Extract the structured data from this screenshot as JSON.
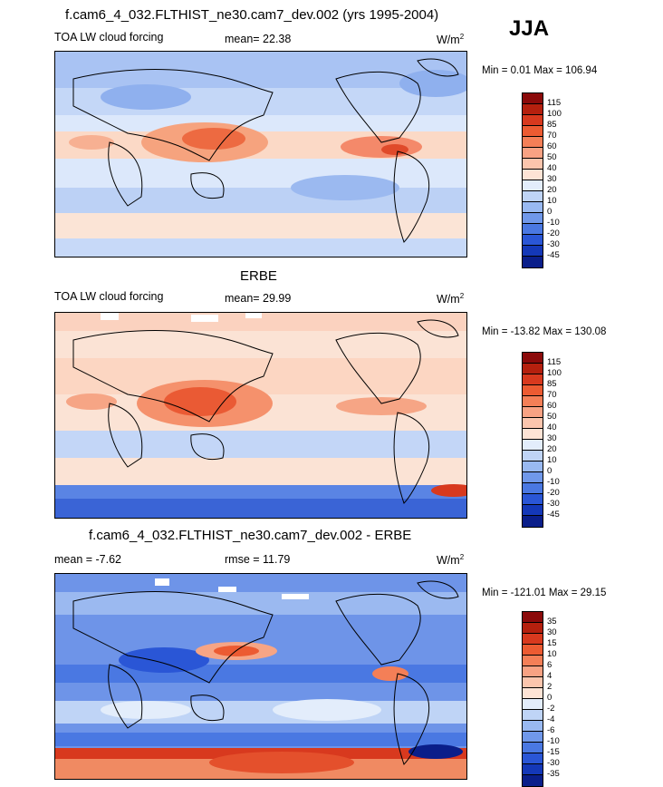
{
  "season": "JJA",
  "panels": [
    {
      "title": "f.cam6_4_032.FLTHIST_ne30.cam7_dev.002 (yrs 1995-2004)",
      "variable": "TOA LW cloud forcing",
      "stat1": "mean=  22.38",
      "stat2": "",
      "units": "W/m",
      "units_sup": "2",
      "minmax": "Min =   0.01 Max = 106.94",
      "colorbar": {
        "labels": [
          "115",
          "100",
          "85",
          "70",
          "60",
          "50",
          "40",
          "30",
          "20",
          "10",
          "0",
          "-10",
          "-20",
          "-30",
          "-45"
        ],
        "colors": [
          "#8b0a0a",
          "#b5200e",
          "#d8391e",
          "#ec5b32",
          "#f47f57",
          "#f8a283",
          "#fbc5ad",
          "#fde3d5",
          "#e3edfb",
          "#bfd4f6",
          "#99b9f1",
          "#7098ea",
          "#4a78e2",
          "#2a56d6",
          "#1438b8",
          "#0a1e8a"
        ]
      }
    },
    {
      "title": "ERBE",
      "variable": "TOA LW cloud forcing",
      "stat1": "mean=  29.99",
      "stat2": "",
      "units": "W/m",
      "units_sup": "2",
      "minmax": "Min = -13.82 Max = 130.08",
      "colorbar": {
        "labels": [
          "115",
          "100",
          "85",
          "70",
          "60",
          "50",
          "40",
          "30",
          "20",
          "10",
          "0",
          "-10",
          "-20",
          "-30",
          "-45"
        ],
        "colors": [
          "#8b0a0a",
          "#b5200e",
          "#d8391e",
          "#ec5b32",
          "#f47f57",
          "#f8a283",
          "#fbc5ad",
          "#fde3d5",
          "#e3edfb",
          "#bfd4f6",
          "#99b9f1",
          "#7098ea",
          "#4a78e2",
          "#2a56d6",
          "#1438b8",
          "#0a1e8a"
        ]
      }
    },
    {
      "title": "f.cam6_4_032.FLTHIST_ne30.cam7_dev.002 - ERBE",
      "variable": "",
      "stat1": "mean =  -7.62",
      "stat2": "rmse =  11.79",
      "units": "W/m",
      "units_sup": "2",
      "minmax": "Min = -121.01 Max =  29.15",
      "colorbar": {
        "labels": [
          "35",
          "30",
          "15",
          "10",
          "6",
          "4",
          "2",
          "0",
          "-2",
          "-4",
          "-6",
          "-10",
          "-15",
          "-30",
          "-35"
        ],
        "colors": [
          "#8b0a0a",
          "#b5200e",
          "#d8391e",
          "#ec5b32",
          "#f47f57",
          "#f8a283",
          "#fbc5ad",
          "#fde3d5",
          "#e3edfb",
          "#bfd4f6",
          "#99b9f1",
          "#7098ea",
          "#4a78e2",
          "#2a56d6",
          "#1438b8",
          "#0a1e8a"
        ]
      }
    }
  ]
}
